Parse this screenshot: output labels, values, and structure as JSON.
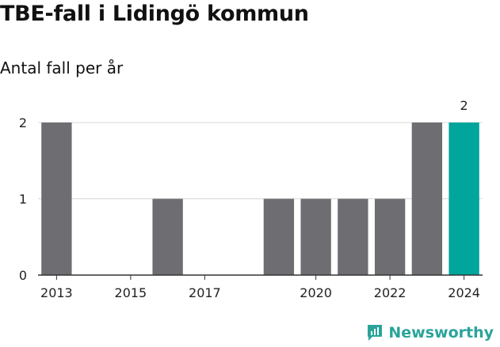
{
  "title": "TBE-fall i Lidingö kommun",
  "subtitle": "Antal fall per år",
  "brand": "Newsworthy",
  "colors": {
    "bar": "#6e6d72",
    "highlight": "#00a59c",
    "grid": "#d9d9d9",
    "axis": "#333333"
  },
  "chart_data": {
    "type": "bar",
    "x": [
      2013,
      2014,
      2015,
      2016,
      2017,
      2018,
      2019,
      2020,
      2021,
      2022,
      2023,
      2024
    ],
    "values": [
      2,
      0,
      0,
      1,
      0,
      0,
      1,
      1,
      1,
      1,
      2,
      2
    ],
    "highlight": 2024,
    "highlight_label": "2",
    "x_ticks": [
      "2013",
      "2015",
      "2017",
      "2020",
      "2022",
      "2024"
    ],
    "y_ticks": [
      "0",
      "1",
      "2"
    ],
    "ylim": [
      0,
      2
    ],
    "grid": true
  }
}
